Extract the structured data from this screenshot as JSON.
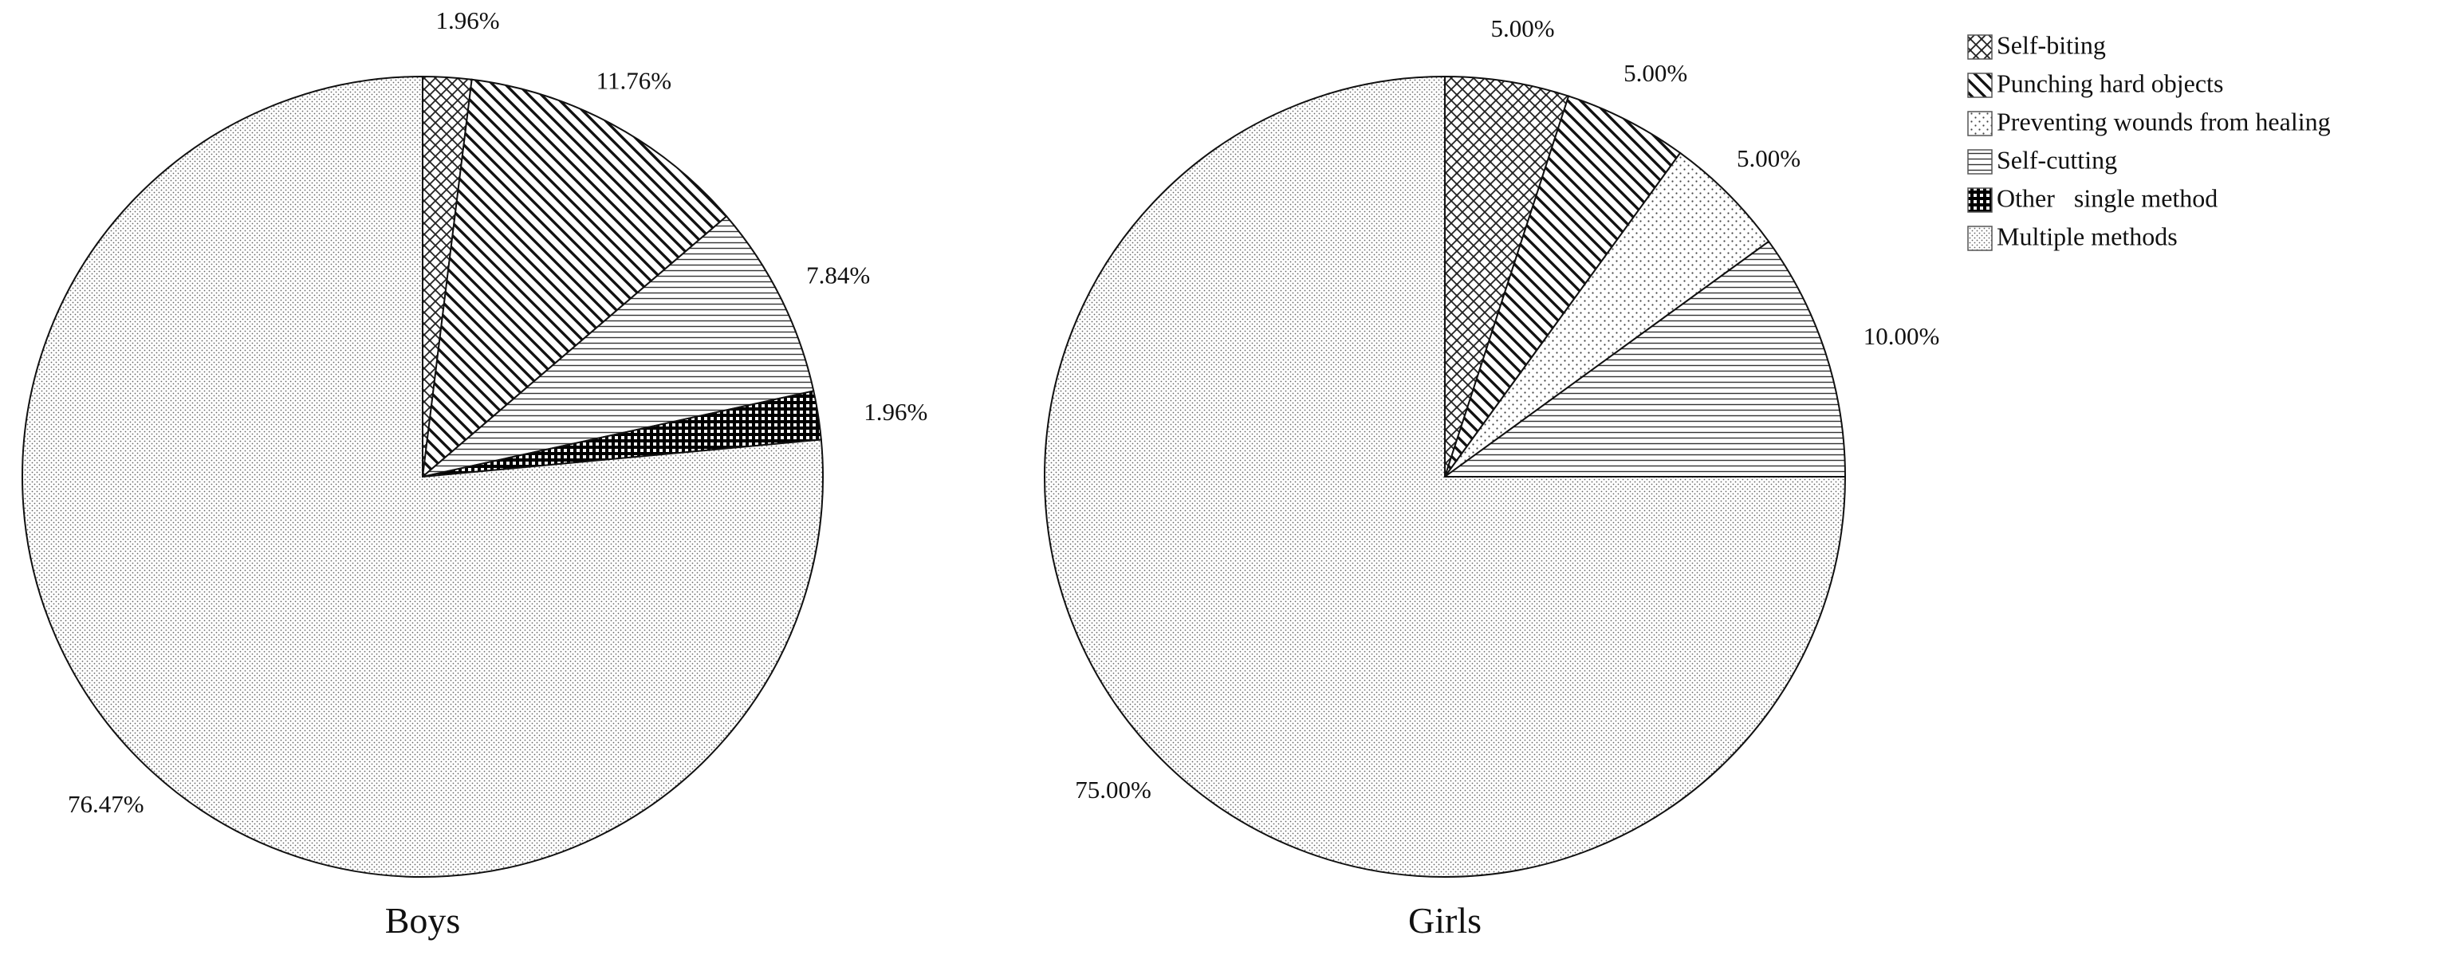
{
  "colors": {
    "stroke": "#111111",
    "background": "#ffffff",
    "legend_border": "#555555"
  },
  "legend": {
    "placement": "top-right",
    "entries": [
      {
        "label": "Self-biting",
        "pattern": "diamond-lattice"
      },
      {
        "label": "Punching hard objects",
        "pattern": "diagonal-stripes"
      },
      {
        "label": "Preventing wounds from healing",
        "pattern": "sparse-dots"
      },
      {
        "label": "Self-cutting",
        "pattern": "horizontal-lines"
      },
      {
        "label": "Other   single method",
        "pattern": "black-checker"
      },
      {
        "label": "Multiple methods",
        "pattern": "dense-dots"
      }
    ]
  },
  "chart_data": [
    {
      "type": "pie",
      "title": "Boys",
      "start_angle": "12 o'clock",
      "direction": "clockwise",
      "categories": [
        "Self-biting",
        "Punching hard objects",
        "Self-cutting",
        "Other   single method",
        "Multiple methods"
      ],
      "values": [
        1.96,
        11.76,
        7.84,
        1.96,
        76.47
      ],
      "labels": [
        "1.96%",
        "11.76%",
        "7.84%",
        "1.96%",
        "76.47%"
      ]
    },
    {
      "type": "pie",
      "title": "Girls",
      "start_angle": "12 o'clock",
      "direction": "clockwise",
      "categories": [
        "Self-biting",
        "Punching hard objects",
        "Preventing wounds from healing",
        "Self-cutting",
        "Multiple methods"
      ],
      "values": [
        5.0,
        5.0,
        5.0,
        10.0,
        75.0
      ],
      "labels": [
        "5.00%",
        "5.00%",
        "5.00%",
        "10.00%",
        "75.00%"
      ]
    }
  ]
}
